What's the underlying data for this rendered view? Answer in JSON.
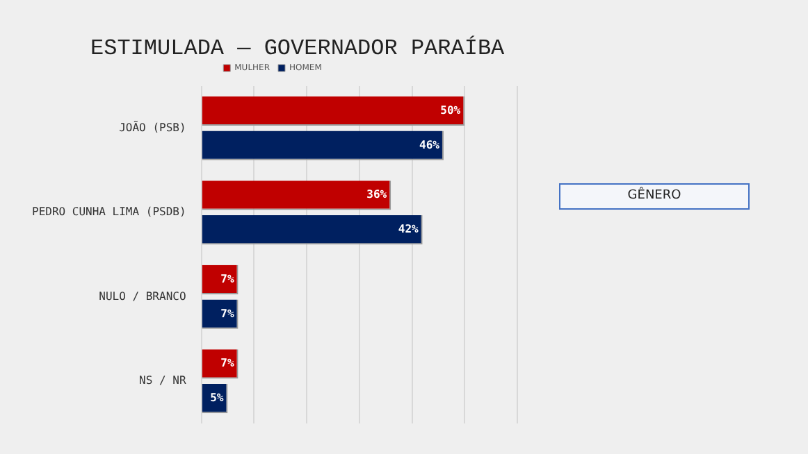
{
  "chart_data": {
    "type": "bar",
    "orientation": "horizontal",
    "title": "ESTIMULADA — GOVERNADOR PARAÍBA",
    "categories": [
      "JOÃO (PSB)",
      "PEDRO CUNHA LIMA (PSDB)",
      "NULO / BRANCO",
      "NS / NR"
    ],
    "series": [
      {
        "name": "MULHER",
        "color": "#c00000",
        "values": [
          50,
          36,
          7,
          7
        ],
        "value_labels": [
          "50%",
          "36%",
          "7%",
          "7%"
        ]
      },
      {
        "name": "HOMEM",
        "color": "#002060",
        "values": [
          46,
          42,
          7,
          5
        ],
        "value_labels": [
          "46%",
          "42%",
          "7%",
          "5%"
        ]
      }
    ],
    "xlim": [
      0,
      60
    ],
    "xticks": [
      {
        "value": 0,
        "label": null
      },
      {
        "value": 10,
        "label": null
      },
      {
        "value": 20,
        "label": null
      },
      {
        "value": 30,
        "label": null
      },
      {
        "value": 40,
        "label": null
      },
      {
        "value": 50,
        "label": null
      },
      {
        "value": 60,
        "label": null
      }
    ],
    "tick_labels": "y",
    "grid": "x",
    "legend": "top",
    "annotations": [
      "GÊNERO"
    ]
  }
}
